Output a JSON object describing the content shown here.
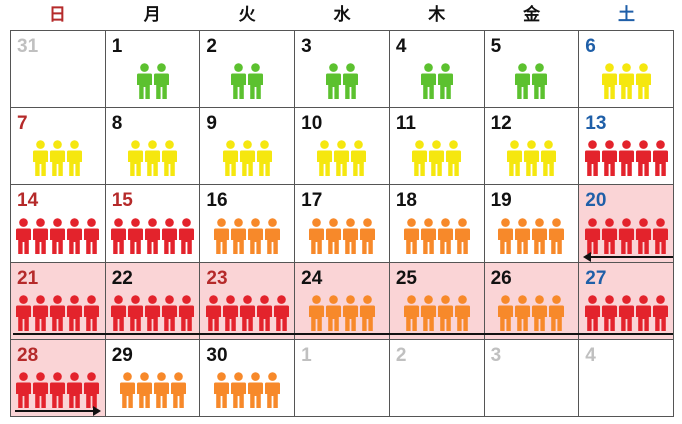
{
  "weekdays": [
    {
      "label": "日",
      "kind": "sun"
    },
    {
      "label": "月",
      "kind": "weekday"
    },
    {
      "label": "火",
      "kind": "weekday"
    },
    {
      "label": "水",
      "kind": "weekday"
    },
    {
      "label": "木",
      "kind": "weekday"
    },
    {
      "label": "金",
      "kind": "weekday"
    },
    {
      "label": "土",
      "kind": "sat"
    }
  ],
  "colors": {
    "green": "#5cc12f",
    "yellow": "#f5e70f",
    "red": "#e3232c",
    "orange": "#f7892a",
    "highlight": "#fad4d6"
  },
  "days": [
    {
      "num": "31",
      "kind": "other",
      "count": 0,
      "color": ""
    },
    {
      "num": "1",
      "kind": "weekday",
      "count": 2,
      "color": "green"
    },
    {
      "num": "2",
      "kind": "weekday",
      "count": 2,
      "color": "green"
    },
    {
      "num": "3",
      "kind": "weekday",
      "count": 2,
      "color": "green"
    },
    {
      "num": "4",
      "kind": "weekday",
      "count": 2,
      "color": "green"
    },
    {
      "num": "5",
      "kind": "weekday",
      "count": 2,
      "color": "green"
    },
    {
      "num": "6",
      "kind": "sat",
      "count": 3,
      "color": "yellow"
    },
    {
      "num": "7",
      "kind": "sun",
      "count": 3,
      "color": "yellow"
    },
    {
      "num": "8",
      "kind": "weekday",
      "count": 3,
      "color": "yellow"
    },
    {
      "num": "9",
      "kind": "weekday",
      "count": 3,
      "color": "yellow"
    },
    {
      "num": "10",
      "kind": "weekday",
      "count": 3,
      "color": "yellow"
    },
    {
      "num": "11",
      "kind": "weekday",
      "count": 3,
      "color": "yellow"
    },
    {
      "num": "12",
      "kind": "weekday",
      "count": 3,
      "color": "yellow"
    },
    {
      "num": "13",
      "kind": "sat",
      "count": 5,
      "color": "red"
    },
    {
      "num": "14",
      "kind": "sun",
      "count": 5,
      "color": "red"
    },
    {
      "num": "15",
      "kind": "sun",
      "count": 5,
      "color": "red"
    },
    {
      "num": "16",
      "kind": "weekday",
      "count": 4,
      "color": "orange"
    },
    {
      "num": "17",
      "kind": "weekday",
      "count": 4,
      "color": "orange"
    },
    {
      "num": "18",
      "kind": "weekday",
      "count": 4,
      "color": "orange"
    },
    {
      "num": "19",
      "kind": "weekday",
      "count": 4,
      "color": "orange"
    },
    {
      "num": "20",
      "kind": "sat",
      "count": 5,
      "color": "red",
      "highlight": true
    },
    {
      "num": "21",
      "kind": "sun",
      "count": 5,
      "color": "red",
      "highlight": true
    },
    {
      "num": "22",
      "kind": "weekday",
      "count": 5,
      "color": "red",
      "highlight": true
    },
    {
      "num": "23",
      "kind": "sun",
      "count": 5,
      "color": "red",
      "highlight": true
    },
    {
      "num": "24",
      "kind": "weekday",
      "count": 4,
      "color": "orange",
      "highlight": true
    },
    {
      "num": "25",
      "kind": "weekday",
      "count": 4,
      "color": "orange",
      "highlight": true
    },
    {
      "num": "26",
      "kind": "weekday",
      "count": 4,
      "color": "orange",
      "highlight": true
    },
    {
      "num": "27",
      "kind": "sat",
      "count": 5,
      "color": "red",
      "highlight": true
    },
    {
      "num": "28",
      "kind": "sun",
      "count": 5,
      "color": "red",
      "highlight": true
    },
    {
      "num": "29",
      "kind": "weekday",
      "count": 4,
      "color": "orange"
    },
    {
      "num": "30",
      "kind": "weekday",
      "count": 4,
      "color": "orange"
    },
    {
      "num": "1",
      "kind": "other",
      "count": 0,
      "color": ""
    },
    {
      "num": "2",
      "kind": "other",
      "count": 0,
      "color": ""
    },
    {
      "num": "3",
      "kind": "other",
      "count": 0,
      "color": ""
    },
    {
      "num": "4",
      "kind": "other",
      "count": 0,
      "color": ""
    }
  ]
}
